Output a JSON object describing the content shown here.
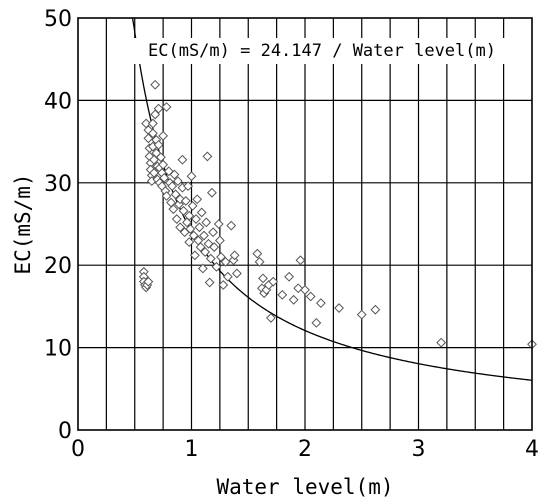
{
  "chart_data": {
    "type": "scatter",
    "xlabel": "Water level(m)",
    "ylabel": "EC(mS/m)",
    "xlim": [
      0,
      4
    ],
    "ylim": [
      0,
      50
    ],
    "x_ticks": [
      0,
      0.25,
      0.5,
      0.75,
      1,
      1.25,
      1.5,
      1.75,
      2,
      2.25,
      2.5,
      2.75,
      3,
      3.25,
      3.5,
      3.75,
      4
    ],
    "x_tick_labels": [
      {
        "v": 0,
        "t": "0"
      },
      {
        "v": 1,
        "t": "1"
      },
      {
        "v": 2,
        "t": "2"
      },
      {
        "v": 3,
        "t": "3"
      },
      {
        "v": 4,
        "t": "4"
      }
    ],
    "y_ticks": [
      0,
      10,
      20,
      30,
      40,
      50
    ],
    "y_tick_labels": [
      {
        "v": 0,
        "t": "0"
      },
      {
        "v": 10,
        "t": "10"
      },
      {
        "v": 20,
        "t": "20"
      },
      {
        "v": 30,
        "t": "30"
      },
      {
        "v": 40,
        "t": "40"
      },
      {
        "v": 50,
        "t": "50"
      }
    ],
    "grid": true,
    "annotation": "EC(mS/m) = 24.147 / Water level(m)",
    "curve": {
      "equation": "y = 24.147 / x",
      "a": 24.147,
      "x_range": [
        0.48,
        4
      ]
    },
    "marker": "diamond",
    "points": [
      [
        0.58,
        19.2
      ],
      [
        0.58,
        18.6
      ],
      [
        0.58,
        18.0
      ],
      [
        0.59,
        17.6
      ],
      [
        0.6,
        17.3
      ],
      [
        0.61,
        17.6
      ],
      [
        0.62,
        18.0
      ],
      [
        0.6,
        37.2
      ],
      [
        0.62,
        36.4
      ],
      [
        0.62,
        35.4
      ],
      [
        0.63,
        34.2
      ],
      [
        0.63,
        33.2
      ],
      [
        0.64,
        32.4
      ],
      [
        0.64,
        31.6
      ],
      [
        0.65,
        30.9
      ],
      [
        0.65,
        30.2
      ],
      [
        0.66,
        37.2
      ],
      [
        0.66,
        36.0
      ],
      [
        0.66,
        34.4
      ],
      [
        0.67,
        32.8
      ],
      [
        0.67,
        31.2
      ],
      [
        0.68,
        41.9
      ],
      [
        0.68,
        38.3
      ],
      [
        0.69,
        35.2
      ],
      [
        0.69,
        33.6
      ],
      [
        0.7,
        32.0
      ],
      [
        0.7,
        30.4
      ],
      [
        0.71,
        39.0
      ],
      [
        0.71,
        34.6
      ],
      [
        0.72,
        31.8
      ],
      [
        0.72,
        30.0
      ],
      [
        0.73,
        33.1
      ],
      [
        0.74,
        31.2
      ],
      [
        0.74,
        29.6
      ],
      [
        0.75,
        35.7
      ],
      [
        0.75,
        32.2
      ],
      [
        0.76,
        30.6
      ],
      [
        0.77,
        29.0
      ],
      [
        0.78,
        39.2
      ],
      [
        0.78,
        28.4
      ],
      [
        0.8,
        31.4
      ],
      [
        0.81,
        30.0
      ],
      [
        0.82,
        27.6
      ],
      [
        0.83,
        29.6
      ],
      [
        0.84,
        26.8
      ],
      [
        0.85,
        31.0
      ],
      [
        0.86,
        28.6
      ],
      [
        0.87,
        25.6
      ],
      [
        0.88,
        30.2
      ],
      [
        0.89,
        27.4
      ],
      [
        0.9,
        24.6
      ],
      [
        0.9,
        28.0
      ],
      [
        0.92,
        32.8
      ],
      [
        0.92,
        29.4
      ],
      [
        0.93,
        26.6
      ],
      [
        0.94,
        24.0
      ],
      [
        0.95,
        27.8
      ],
      [
        0.96,
        25.2
      ],
      [
        0.97,
        29.6
      ],
      [
        0.98,
        22.8
      ],
      [
        0.98,
        26.0
      ],
      [
        0.99,
        24.4
      ],
      [
        1.0,
        30.8
      ],
      [
        1.01,
        27.2
      ],
      [
        1.02,
        23.6
      ],
      [
        1.03,
        21.2
      ],
      [
        1.04,
        25.6
      ],
      [
        1.05,
        28.0
      ],
      [
        1.06,
        23.0
      ],
      [
        1.07,
        24.6
      ],
      [
        1.08,
        22.2
      ],
      [
        1.09,
        26.4
      ],
      [
        1.1,
        19.6
      ],
      [
        1.11,
        23.6
      ],
      [
        1.12,
        21.6
      ],
      [
        1.13,
        25.2
      ],
      [
        1.14,
        33.2
      ],
      [
        1.15,
        22.6
      ],
      [
        1.16,
        17.9
      ],
      [
        1.17,
        20.8
      ],
      [
        1.18,
        28.8
      ],
      [
        1.19,
        24.0
      ],
      [
        1.2,
        22.2
      ],
      [
        1.22,
        19.8
      ],
      [
        1.24,
        25.0
      ],
      [
        1.25,
        23.0
      ],
      [
        1.26,
        21.0
      ],
      [
        1.28,
        17.6
      ],
      [
        1.3,
        20.4
      ],
      [
        1.32,
        18.6
      ],
      [
        1.35,
        24.8
      ],
      [
        1.37,
        20.6
      ],
      [
        1.38,
        21.2
      ],
      [
        1.4,
        19.0
      ],
      [
        1.58,
        21.4
      ],
      [
        1.6,
        20.4
      ],
      [
        1.62,
        17.2
      ],
      [
        1.63,
        18.4
      ],
      [
        1.64,
        16.6
      ],
      [
        1.66,
        17.0
      ],
      [
        1.68,
        17.6
      ],
      [
        1.7,
        13.6
      ],
      [
        1.72,
        18.0
      ],
      [
        1.8,
        16.4
      ],
      [
        1.86,
        18.6
      ],
      [
        1.9,
        15.8
      ],
      [
        1.94,
        17.2
      ],
      [
        1.96,
        20.6
      ],
      [
        2.0,
        17.0
      ],
      [
        2.05,
        16.2
      ],
      [
        2.1,
        13.0
      ],
      [
        2.14,
        15.4
      ],
      [
        2.3,
        14.8
      ],
      [
        2.5,
        14.0
      ],
      [
        2.62,
        14.6
      ],
      [
        3.2,
        10.6
      ],
      [
        4.0,
        10.4
      ]
    ]
  }
}
